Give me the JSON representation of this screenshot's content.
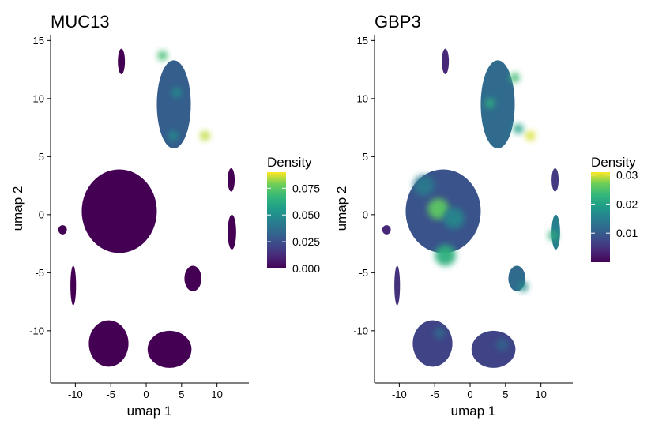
{
  "chart_data": [
    {
      "type": "scatter",
      "title": "MUC13",
      "xlabel": "umap 1",
      "ylabel": "umap 2",
      "xlim": [
        -13.5,
        14.5
      ],
      "ylim": [
        -14.5,
        15.5
      ],
      "xticks": [
        -10,
        -5,
        0,
        5,
        10
      ],
      "xtick_labels": [
        "-10",
        "-5",
        "0",
        "5",
        "10"
      ],
      "yticks": [
        -10,
        -5,
        0,
        5,
        10,
        15
      ],
      "ytick_labels": [
        "-10",
        "-5",
        "0",
        "5",
        "10",
        "15"
      ],
      "grid": false,
      "legend": {
        "title": "Density",
        "placement": "right",
        "range": [
          0.0,
          0.09
        ],
        "ticks": [
          0.0,
          0.025,
          0.05,
          0.075
        ],
        "tick_labels": [
          "0.000",
          "0.025",
          "0.050",
          "0.075"
        ]
      },
      "colormap": "viridis",
      "clusters": [
        {
          "name": "main",
          "x": -3.8,
          "y": 0.3,
          "rx": 5.3,
          "ry": 3.6,
          "density": 0.0
        },
        {
          "name": "top-right",
          "x": 3.9,
          "y": 9.5,
          "rx": 2.4,
          "ry": 3.8,
          "density": 0.03,
          "hotspots": [
            {
              "x": 2.3,
              "y": 13.7,
              "density": 0.07
            },
            {
              "x": 8.3,
              "y": 6.8,
              "density": 0.085
            },
            {
              "x": 4.3,
              "y": 10.5,
              "density": 0.05
            },
            {
              "x": 3.8,
              "y": 6.8,
              "density": 0.05
            }
          ]
        },
        {
          "name": "top-small",
          "x": -3.5,
          "y": 13.2,
          "rx": 0.5,
          "ry": 1.1,
          "density": 0.0
        },
        {
          "name": "bottom-left",
          "x": -5.3,
          "y": -11.1,
          "rx": 2.8,
          "ry": 2.0,
          "density": 0.0
        },
        {
          "name": "bottom-right",
          "x": 3.3,
          "y": -11.6,
          "rx": 3.1,
          "ry": 1.6,
          "density": 0.0
        },
        {
          "name": "right-mid",
          "x": 6.6,
          "y": -5.5,
          "rx": 1.2,
          "ry": 1.1,
          "density": 0.0
        },
        {
          "name": "far-right-upper",
          "x": 12.0,
          "y": 3.0,
          "rx": 0.5,
          "ry": 1.0,
          "density": 0.0
        },
        {
          "name": "far-right-lower",
          "x": 12.1,
          "y": -1.5,
          "rx": 0.6,
          "ry": 1.5,
          "density": 0.0
        },
        {
          "name": "left-small",
          "x": -10.3,
          "y": -6.1,
          "rx": 0.4,
          "ry": 1.7,
          "density": 0.0
        },
        {
          "name": "left-dot",
          "x": -11.8,
          "y": -1.3,
          "rx": 0.6,
          "ry": 0.4,
          "density": 0.0
        }
      ]
    },
    {
      "type": "scatter",
      "title": "GBP3",
      "xlabel": "umap 1",
      "ylabel": "umap 2",
      "xlim": [
        -13.5,
        14.5
      ],
      "ylim": [
        -14.5,
        15.5
      ],
      "xticks": [
        -10,
        -5,
        0,
        5,
        10
      ],
      "xtick_labels": [
        "-10",
        "-5",
        "0",
        "5",
        "10"
      ],
      "yticks": [
        -10,
        -5,
        0,
        5,
        10,
        15
      ],
      "ytick_labels": [
        "-10",
        "-5",
        "0",
        "5",
        "10",
        "15"
      ],
      "grid": false,
      "legend": {
        "title": "Density",
        "placement": "right",
        "range": [
          0.0,
          0.031
        ],
        "ticks": [
          0.01,
          0.02,
          0.03
        ],
        "tick_labels": [
          "0.01",
          "0.02",
          "0.03"
        ]
      },
      "colormap": "viridis",
      "clusters": [
        {
          "name": "main",
          "x": -3.8,
          "y": 0.3,
          "rx": 5.3,
          "ry": 3.6,
          "density": 0.009,
          "hotspots": [
            {
              "x": -4.5,
              "y": 0.5,
              "density": 0.026
            },
            {
              "x": -3.5,
              "y": -3.5,
              "density": 0.022
            },
            {
              "x": -2.3,
              "y": -0.3,
              "density": 0.016
            },
            {
              "x": -6.5,
              "y": 2.5,
              "density": 0.014
            }
          ]
        },
        {
          "name": "top-right",
          "x": 3.9,
          "y": 9.5,
          "rx": 2.4,
          "ry": 3.8,
          "density": 0.012,
          "hotspots": [
            {
              "x": 8.5,
              "y": 6.8,
              "density": 0.03
            },
            {
              "x": 6.3,
              "y": 11.8,
              "density": 0.024
            },
            {
              "x": 2.8,
              "y": 9.6,
              "density": 0.022
            },
            {
              "x": 6.8,
              "y": 7.4,
              "density": 0.02
            }
          ]
        },
        {
          "name": "top-small",
          "x": -3.5,
          "y": 13.2,
          "rx": 0.5,
          "ry": 1.1,
          "density": 0.004
        },
        {
          "name": "bottom-left",
          "x": -5.3,
          "y": -11.1,
          "rx": 2.8,
          "ry": 2.0,
          "density": 0.007,
          "hotspots": [
            {
              "x": -4.3,
              "y": -10.2,
              "density": 0.012
            }
          ]
        },
        {
          "name": "bottom-right",
          "x": 3.3,
          "y": -11.6,
          "rx": 3.1,
          "ry": 1.6,
          "density": 0.007,
          "hotspots": [
            {
              "x": 4.5,
              "y": -11.2,
              "density": 0.011
            }
          ]
        },
        {
          "name": "right-mid",
          "x": 6.6,
          "y": -5.5,
          "rx": 1.2,
          "ry": 1.1,
          "density": 0.012,
          "hotspots": [
            {
              "x": 7.5,
              "y": -6.2,
              "density": 0.017
            }
          ]
        },
        {
          "name": "far-right-upper",
          "x": 12.0,
          "y": 3.0,
          "rx": 0.5,
          "ry": 1.0,
          "density": 0.006
        },
        {
          "name": "far-right-lower",
          "x": 12.1,
          "y": -1.5,
          "rx": 0.6,
          "ry": 1.5,
          "density": 0.015,
          "hotspots": [
            {
              "x": 11.7,
              "y": -1.8,
              "density": 0.022
            }
          ]
        },
        {
          "name": "left-small",
          "x": -10.3,
          "y": -6.1,
          "rx": 0.4,
          "ry": 1.7,
          "density": 0.005
        },
        {
          "name": "left-dot",
          "x": -11.8,
          "y": -1.3,
          "rx": 0.6,
          "ry": 0.4,
          "density": 0.004
        }
      ]
    }
  ]
}
